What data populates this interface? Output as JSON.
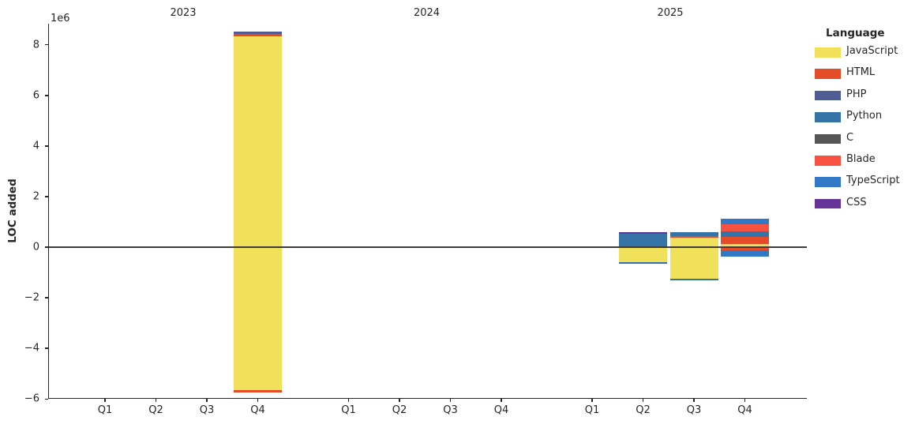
{
  "figure": {
    "background": "#ffffff"
  },
  "y_axis": {
    "label": "LOC added",
    "offset_text": "1e6",
    "ylim": [
      -5.95,
      8.84
    ],
    "ticks": [
      {
        "value": 8,
        "label": "8"
      },
      {
        "value": 6,
        "label": "6"
      },
      {
        "value": 4,
        "label": "4"
      },
      {
        "value": 2,
        "label": "2"
      },
      {
        "value": 0,
        "label": "0"
      },
      {
        "value": -2,
        "label": "−2"
      },
      {
        "value": -4,
        "label": "−4"
      },
      {
        "value": -6,
        "label": "−6"
      }
    ]
  },
  "x_axis": {
    "groups": [
      {
        "year": "2023",
        "quarters": [
          "Q1",
          "Q2",
          "Q3",
          "Q4"
        ]
      },
      {
        "year": "2024",
        "quarters": [
          "Q1",
          "Q2",
          "Q3",
          "Q4"
        ]
      },
      {
        "year": "2025",
        "quarters": [
          "Q1",
          "Q2",
          "Q3",
          "Q4"
        ]
      }
    ]
  },
  "legend": {
    "title": "Language",
    "items": [
      {
        "label": "JavaScript",
        "color": "#f1e05a"
      },
      {
        "label": "HTML",
        "color": "#e34c26"
      },
      {
        "label": "PHP",
        "color": "#4F5D95"
      },
      {
        "label": "Python",
        "color": "#3572A5"
      },
      {
        "label": "C",
        "color": "#555555"
      },
      {
        "label": "Blade",
        "color": "#f7523f"
      },
      {
        "label": "TypeScript",
        "color": "#3178c6"
      },
      {
        "label": "CSS",
        "color": "#663399"
      }
    ]
  },
  "chart_data": {
    "type": "bar",
    "stacked": true,
    "diverging": true,
    "title": "",
    "xlabel": "",
    "ylabel": "LOC added",
    "values_unit": "millions of LOC (1e6)",
    "ylim": [
      -5.95,
      8.84
    ],
    "grid": false,
    "legend_position": "upper right, outside axes",
    "series_order": [
      "JavaScript",
      "HTML",
      "PHP",
      "Python",
      "C",
      "Blade",
      "TypeScript",
      "CSS"
    ],
    "colors": {
      "JavaScript": "#f1e05a",
      "HTML": "#e34c26",
      "PHP": "#4F5D95",
      "Python": "#3572A5",
      "C": "#555555",
      "Blade": "#f7523f",
      "TypeScript": "#3178c6",
      "CSS": "#663399"
    },
    "bars": [
      {
        "year": "2023",
        "quarter": "Q4",
        "pos": {
          "JavaScript": 8.35,
          "HTML": 0.08,
          "PHP": 0.09
        },
        "neg": {
          "JavaScript": -5.66,
          "HTML": -0.08
        }
      },
      {
        "year": "2024",
        "quarter": "Q2",
        "pos": {
          "HTML": 0.025
        },
        "neg": {
          "HTML": -0.025
        }
      },
      {
        "year": "2025",
        "quarter": "Q2",
        "pos": {
          "Python": 0.54,
          "CSS": 0.06
        },
        "neg": {
          "JavaScript": -0.59,
          "Python": -0.06
        }
      },
      {
        "year": "2025",
        "quarter": "Q3",
        "pos": {
          "JavaScript": 0.36,
          "HTML": 0.08,
          "Python": 0.16
        },
        "neg": {
          "JavaScript": -1.24,
          "Python": -0.06
        }
      },
      {
        "year": "2025",
        "quarter": "Q4",
        "pos": {
          "JavaScript": 0.14,
          "HTML": 0.27,
          "Python": 0.2,
          "Blade": 0.3,
          "TypeScript": 0.23
        },
        "neg": {
          "HTML": -0.11,
          "TypeScript": -0.26
        }
      }
    ]
  }
}
